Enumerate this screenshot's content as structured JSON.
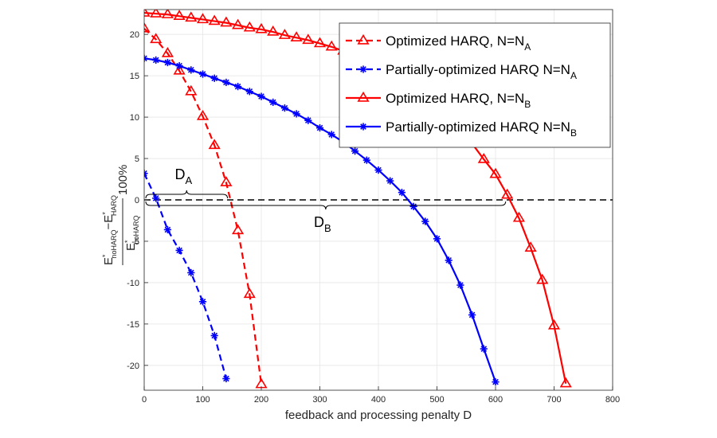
{
  "chart_data": {
    "type": "line",
    "xlabel": "feedback and processing penalty D",
    "ylabel": {
      "num_a": "E",
      "num_a_sub": "noHARQ",
      "num_minus": "−",
      "num_b": "E",
      "num_b_sub": "HARQ",
      "den": "E",
      "den_sub": "noHARQ",
      "star": "*",
      "suffix": "100%"
    },
    "xlim": [
      0,
      800
    ],
    "ylim": [
      -23,
      23
    ],
    "xticks": [
      "0",
      "100",
      "200",
      "300",
      "400",
      "500",
      "600",
      "700",
      "800"
    ],
    "xtick_values": [
      0,
      100,
      200,
      300,
      400,
      500,
      600,
      700,
      800
    ],
    "yticks": [
      "-20",
      "-15",
      "-10",
      "-5",
      "0",
      "5",
      "10",
      "15",
      "20"
    ],
    "ytick_values": [
      -20,
      -15,
      -10,
      -5,
      0,
      5,
      10,
      15,
      20
    ],
    "grid": true,
    "legend": "top-right",
    "series": [
      {
        "name": "Optimized HARQ, N=N",
        "name_sub": "A",
        "color": "#ff0000",
        "dash": "dashed",
        "marker": "triangle",
        "x": [
          0,
          20,
          40,
          60,
          80,
          100,
          120,
          140,
          160,
          180,
          200
        ],
        "y": [
          20.7,
          19.4,
          17.7,
          15.6,
          13.1,
          10.1,
          6.6,
          2.1,
          -3.7,
          -11.4,
          -22.3
        ]
      },
      {
        "name": "Partially-optimized HARQ N=N",
        "name_sub": "A",
        "color": "#0000ff",
        "dash": "dashed",
        "marker": "asterisk",
        "x": [
          0,
          20,
          40,
          60,
          80,
          100,
          120,
          140
        ],
        "y": [
          3.2,
          0.2,
          -3.6,
          -6.1,
          -8.8,
          -12.3,
          -16.4,
          -21.6
        ]
      },
      {
        "name": "Optimized HARQ, N=N",
        "name_sub": "B",
        "color": "#ff0000",
        "dash": "solid",
        "marker": "triangle",
        "x": [
          0,
          20,
          40,
          60,
          80,
          100,
          120,
          140,
          160,
          180,
          200,
          220,
          240,
          260,
          280,
          300,
          320,
          340,
          360,
          380,
          400,
          420,
          540,
          560,
          580,
          600,
          620,
          640,
          660,
          680,
          700,
          720
        ],
        "y": [
          22.6,
          22.5,
          22.4,
          22.2,
          22.0,
          21.8,
          21.6,
          21.4,
          21.1,
          20.8,
          20.6,
          20.3,
          19.9,
          19.6,
          19.3,
          18.9,
          18.5,
          18.0,
          17.6,
          17.1,
          16.7,
          16.2,
          9.9,
          6.8,
          4.9,
          3.1,
          0.6,
          -2.2,
          -5.8,
          -9.7,
          -15.2,
          -22.2
        ]
      },
      {
        "name": "Partially-optimized HARQ N=N",
        "name_sub": "B",
        "color": "#0000ff",
        "dash": "solid",
        "marker": "asterisk",
        "x": [
          0,
          20,
          40,
          60,
          80,
          100,
          120,
          140,
          160,
          180,
          200,
          220,
          240,
          260,
          280,
          300,
          320,
          340,
          360,
          380,
          400,
          420,
          440,
          460,
          480,
          500,
          520,
          540,
          560,
          580,
          600
        ],
        "y": [
          17.1,
          16.9,
          16.6,
          16.2,
          15.7,
          15.2,
          14.7,
          14.2,
          13.7,
          13.1,
          12.5,
          11.8,
          11.1,
          10.4,
          9.6,
          8.7,
          7.9,
          7.0,
          5.9,
          4.8,
          3.6,
          2.3,
          0.9,
          -0.8,
          -2.6,
          -4.7,
          -7.3,
          -10.3,
          -13.9,
          -18.0,
          -22.0
        ]
      }
    ],
    "reference_line": {
      "y": 0,
      "color": "#000000",
      "dash": "dashed"
    },
    "annotations": [
      {
        "label": "D",
        "sub": "A",
        "x_from": 0,
        "x_to": 145,
        "side": "above"
      },
      {
        "label": "D",
        "sub": "B",
        "x_from": 0,
        "x_to": 620,
        "side": "below"
      }
    ]
  }
}
